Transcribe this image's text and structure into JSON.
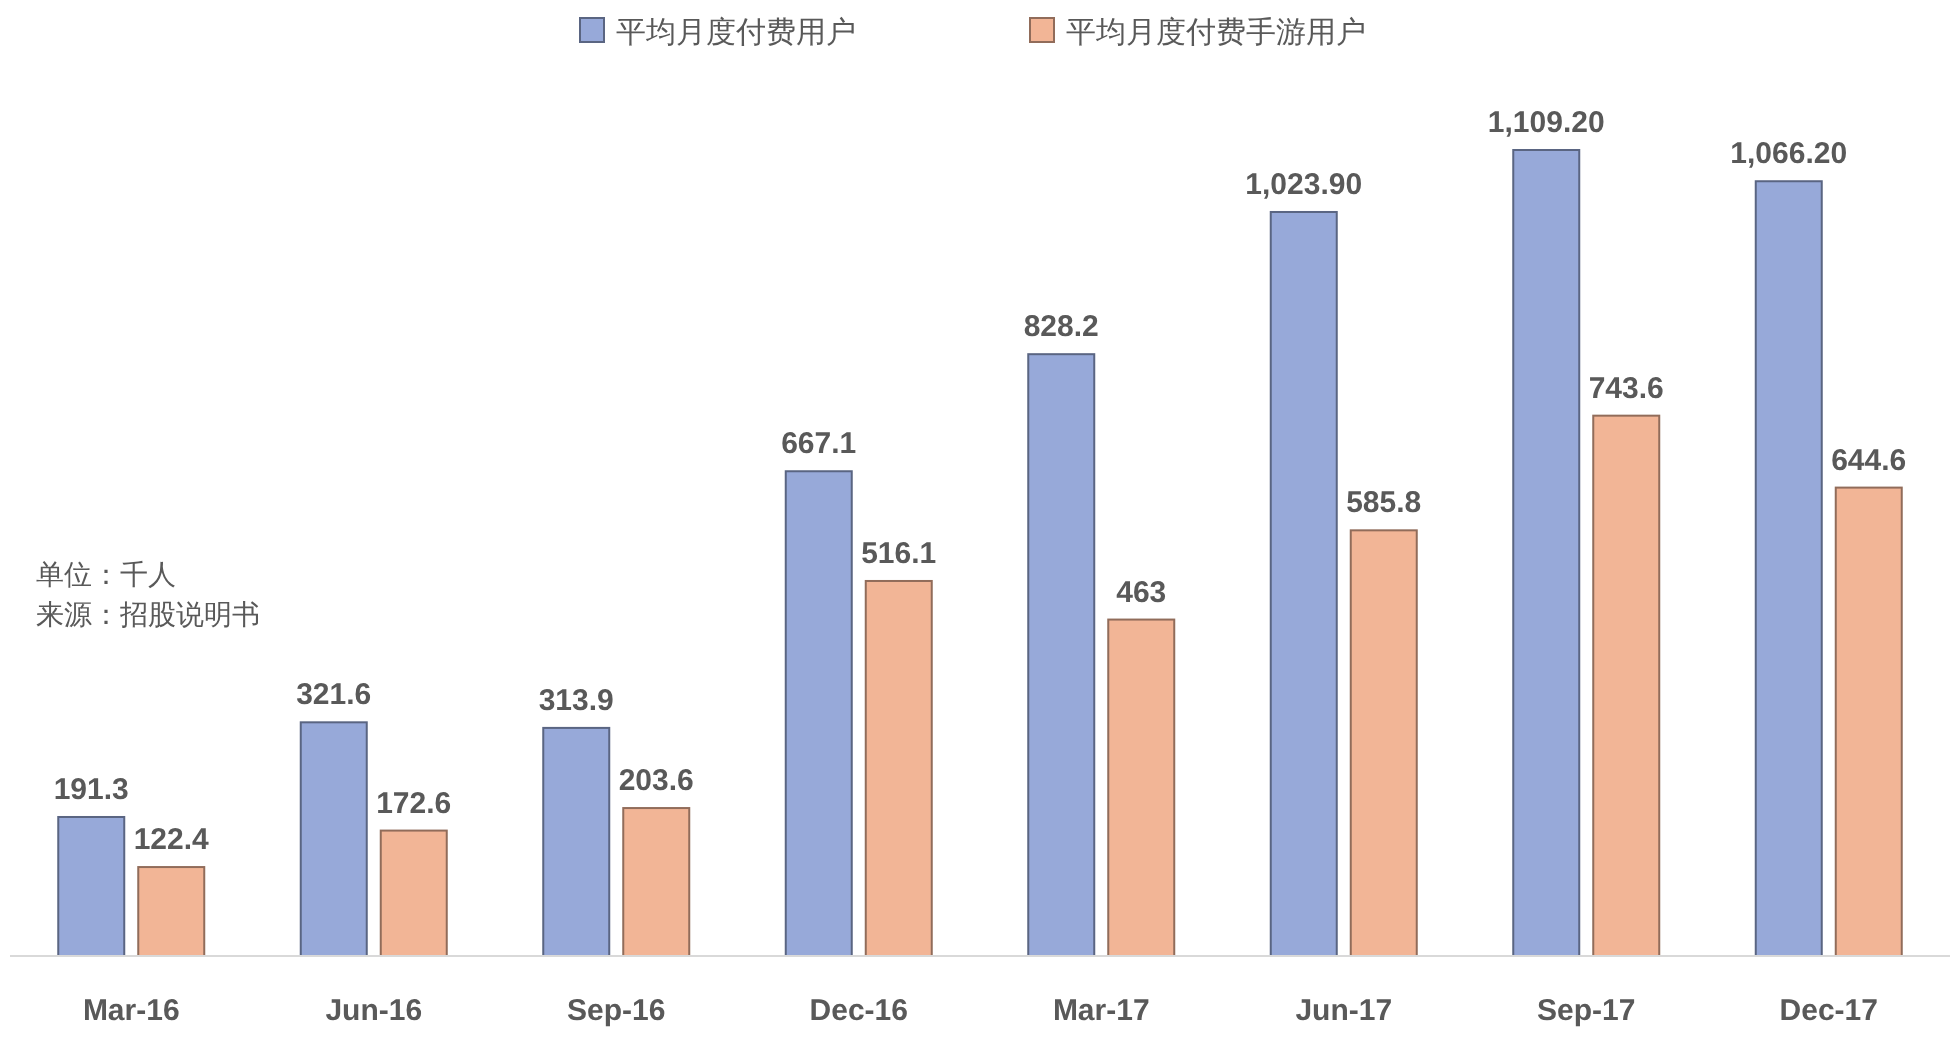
{
  "chart_data": {
    "type": "bar",
    "categories": [
      "Mar-16",
      "Jun-16",
      "Sep-16",
      "Dec-16",
      "Mar-17",
      "Jun-17",
      "Sep-17",
      "Dec-17"
    ],
    "series": [
      {
        "name": "平均月度付费用户",
        "color": "#97a9d9",
        "values": [
          191.3,
          321.6,
          313.9,
          667.1,
          828.2,
          1023.9,
          1109.2,
          1066.2
        ],
        "value_labels": [
          "191.3",
          "321.6",
          "313.9",
          "667.1",
          "828.2",
          "1,023.90",
          "1,109.20",
          "1,066.20"
        ]
      },
      {
        "name": "平均月度付费手游用户",
        "color": "#f2b596",
        "values": [
          122.4,
          172.6,
          203.6,
          516.1,
          463,
          585.8,
          743.6,
          644.6
        ],
        "value_labels": [
          "122.4",
          "172.6",
          "203.6",
          "516.1",
          "463",
          "585.8",
          "743.6",
          "644.6"
        ]
      }
    ],
    "legend": "top",
    "annotations": [
      "单位：千人",
      "来源：招股说明书"
    ]
  }
}
